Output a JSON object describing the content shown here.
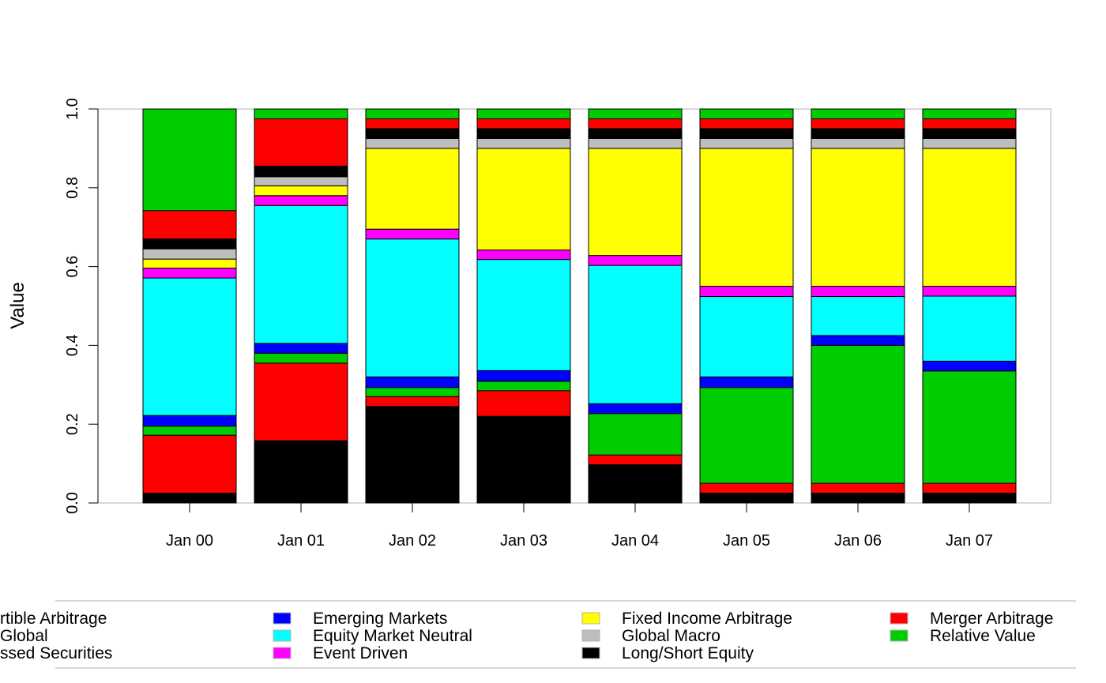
{
  "chart_data": {
    "type": "bar",
    "stacked": true,
    "ylabel": "Value",
    "ylim": [
      0,
      1
    ],
    "yticks": [
      "0.0",
      "0.2",
      "0.4",
      "0.6",
      "0.8",
      "1.0"
    ],
    "ytick_values": [
      0,
      0.2,
      0.4,
      0.6,
      0.8,
      1.0
    ],
    "grid": false,
    "legend_position": "bottom",
    "categories": [
      "Jan 00",
      "Jan 01",
      "Jan 02",
      "Jan 03",
      "Jan 04",
      "Jan 05",
      "Jan 06",
      "Jan 07"
    ],
    "series": [
      {
        "name": "Long/Short Equity",
        "color": "#000000",
        "values": [
          0.025,
          0.158,
          0.245,
          0.22,
          0.097,
          0.025,
          0.025,
          0.025
        ]
      },
      {
        "name": "Merger Arbitrage",
        "color": "#ff0000",
        "values": [
          0.147,
          0.197,
          0.025,
          0.065,
          0.025,
          0.025,
          0.025,
          0.025
        ]
      },
      {
        "name": "Relative Value",
        "color": "#00cd00",
        "values": [
          0.023,
          0.025,
          0.023,
          0.024,
          0.105,
          0.243,
          0.35,
          0.285
        ]
      },
      {
        "name": "Emerging Markets",
        "color": "#0000ff",
        "values": [
          0.027,
          0.025,
          0.027,
          0.027,
          0.025,
          0.027,
          0.025,
          0.025
        ]
      },
      {
        "name": "Equity Market Neutral",
        "color": "#00ffff",
        "values": [
          0.349,
          0.35,
          0.35,
          0.282,
          0.351,
          0.204,
          0.099,
          0.165
        ]
      },
      {
        "name": "Event Driven",
        "color": "#ff00ff",
        "values": [
          0.025,
          0.025,
          0.025,
          0.024,
          0.025,
          0.026,
          0.026,
          0.025
        ]
      },
      {
        "name": "Fixed Income Arbitrage",
        "color": "#ffff00",
        "values": [
          0.023,
          0.025,
          0.205,
          0.258,
          0.272,
          0.35,
          0.35,
          0.35
        ]
      },
      {
        "name": "Global Macro",
        "color": "#bebebe",
        "values": [
          0.026,
          0.023,
          0.025,
          0.025,
          0.025,
          0.025,
          0.025,
          0.025
        ]
      },
      {
        "name": "Long/Short Equity",
        "color": "#000000",
        "values": [
          0.025,
          0.027,
          0.025,
          0.025,
          0.025,
          0.025,
          0.025,
          0.025
        ]
      },
      {
        "name": "Merger Arbitrage",
        "color": "#ff0000",
        "values": [
          0.072,
          0.12,
          0.025,
          0.025,
          0.025,
          0.025,
          0.025,
          0.025
        ]
      },
      {
        "name": "Relative Value",
        "color": "#00cd00",
        "values": [
          0.258,
          0.025,
          0.025,
          0.025,
          0.025,
          0.025,
          0.025,
          0.025
        ]
      }
    ],
    "legend": [
      {
        "label": "rtible Arbitrage",
        "color": "#ffffff"
      },
      {
        "label": "Global",
        "color": "#ffffff"
      },
      {
        "label": "ssed Securities",
        "color": "#ffffff"
      },
      {
        "label": "Emerging Markets",
        "color": "#0000ff"
      },
      {
        "label": "Equity Market Neutral",
        "color": "#00ffff"
      },
      {
        "label": "Event Driven",
        "color": "#ff00ff"
      },
      {
        "label": "Fixed Income Arbitrage",
        "color": "#ffff00"
      },
      {
        "label": "Global Macro",
        "color": "#bebebe"
      },
      {
        "label": "Long/Short Equity",
        "color": "#000000"
      },
      {
        "label": "Merger Arbitrage",
        "color": "#ff0000"
      },
      {
        "label": "Relative Value",
        "color": "#00cd00"
      }
    ]
  }
}
